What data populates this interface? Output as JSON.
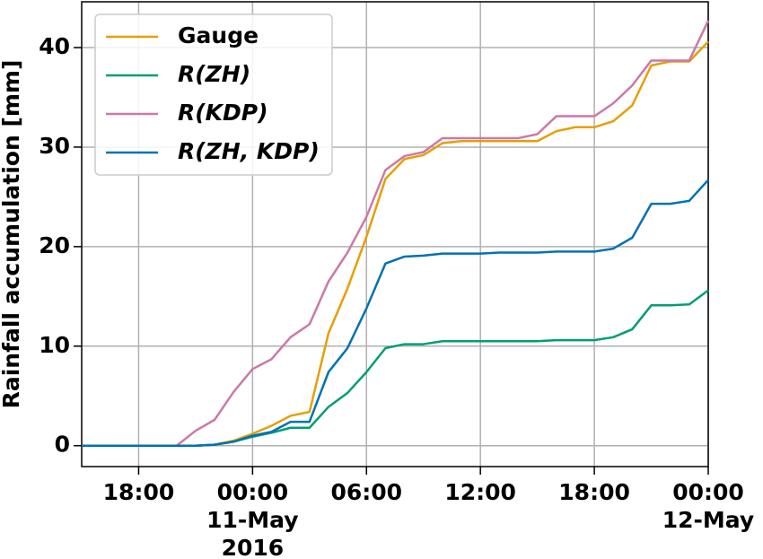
{
  "chart_data": {
    "type": "line",
    "y_label": "Rainfall accumulation [mm]",
    "x": [
      "2016-05-10T15:00",
      "2016-05-10T16:00",
      "2016-05-10T17:00",
      "2016-05-10T18:00",
      "2016-05-10T19:00",
      "2016-05-10T20:00",
      "2016-05-10T21:00",
      "2016-05-10T22:00",
      "2016-05-10T23:00",
      "2016-05-11T00:00",
      "2016-05-11T01:00",
      "2016-05-11T02:00",
      "2016-05-11T03:00",
      "2016-05-11T04:00",
      "2016-05-11T05:00",
      "2016-05-11T06:00",
      "2016-05-11T07:00",
      "2016-05-11T08:00",
      "2016-05-11T09:00",
      "2016-05-11T10:00",
      "2016-05-11T11:00",
      "2016-05-11T12:00",
      "2016-05-11T13:00",
      "2016-05-11T14:00",
      "2016-05-11T15:00",
      "2016-05-11T16:00",
      "2016-05-11T17:00",
      "2016-05-11T18:00",
      "2016-05-11T19:00",
      "2016-05-11T20:00",
      "2016-05-11T21:00",
      "2016-05-11T22:00",
      "2016-05-11T23:00",
      "2016-05-12T00:00"
    ],
    "series": [
      {
        "name": "Gauge",
        "color": "#e69f00",
        "values": [
          0,
          0,
          0,
          0,
          0,
          0,
          0,
          0.1,
          0.5,
          1.2,
          2.0,
          3.0,
          3.4,
          11.3,
          15.8,
          21,
          26.8,
          28.8,
          29.2,
          30.4,
          30.6,
          30.6,
          30.6,
          30.6,
          30.6,
          31.6,
          32,
          32,
          32.6,
          34.2,
          38.2,
          38.6,
          38.6,
          40.6
        ]
      },
      {
        "name": "R(ZH)",
        "color": "#009e73",
        "values": [
          0,
          0,
          0,
          0,
          0,
          0,
          0,
          0.1,
          0.4,
          0.9,
          1.3,
          1.8,
          1.8,
          3.9,
          5.3,
          7.4,
          9.8,
          10.2,
          10.2,
          10.5,
          10.5,
          10.5,
          10.5,
          10.5,
          10.5,
          10.6,
          10.6,
          10.6,
          10.9,
          11.7,
          14.1,
          14.1,
          14.2,
          15.6
        ]
      },
      {
        "name": "R(KDP)",
        "color": "#cc79a7",
        "values": [
          0,
          0,
          0,
          0,
          0,
          0,
          1.5,
          2.6,
          5.4,
          7.7,
          8.7,
          10.9,
          12.2,
          16.5,
          19.4,
          23,
          27.7,
          29.1,
          29.5,
          30.9,
          30.9,
          30.9,
          30.9,
          30.9,
          31.3,
          33.1,
          33.1,
          33.1,
          34.4,
          36.2,
          38.7,
          38.7,
          38.7,
          42.7
        ]
      },
      {
        "name": "R(ZH, KDP)",
        "color": "#0072b2",
        "values": [
          0,
          0,
          0,
          0,
          0,
          0,
          0,
          0.1,
          0.4,
          1.0,
          1.4,
          2.4,
          2.4,
          7.4,
          9.8,
          13.8,
          18.3,
          19.0,
          19.1,
          19.3,
          19.3,
          19.3,
          19.4,
          19.4,
          19.4,
          19.5,
          19.5,
          19.5,
          19.8,
          20.9,
          24.3,
          24.3,
          24.6,
          26.7
        ]
      }
    ],
    "xlim": [
      "2016-05-10T15:00",
      "2016-05-12T00:00"
    ],
    "xticks": [
      {
        "value": "2016-05-10T18:00",
        "label": "18:00"
      },
      {
        "value": "2016-05-11T00:00",
        "label": "00:00\n11-May\n2016"
      },
      {
        "value": "2016-05-11T06:00",
        "label": "06:00"
      },
      {
        "value": "2016-05-11T12:00",
        "label": "12:00"
      },
      {
        "value": "2016-05-11T18:00",
        "label": "18:00"
      },
      {
        "value": "2016-05-12T00:00",
        "label": "00:00\n12-May"
      }
    ],
    "ylim": [
      -2.1,
      44.6
    ],
    "yticks": [
      0,
      10,
      20,
      30,
      40
    ],
    "grid": true,
    "legend": "upper left"
  }
}
